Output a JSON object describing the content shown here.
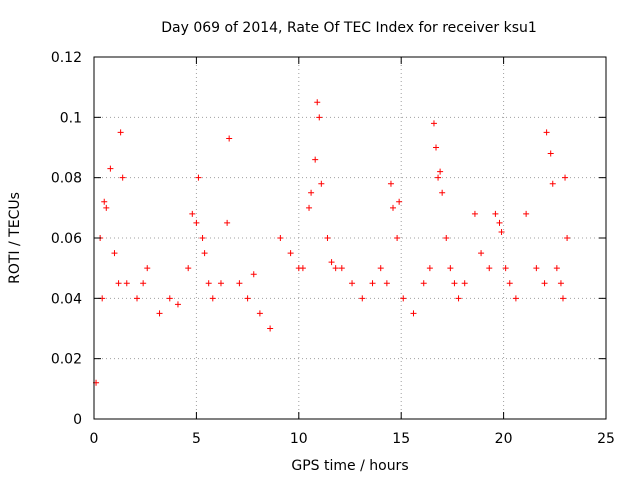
{
  "chart_data": {
    "type": "scatter",
    "title": "Day 069 of 2014, Rate Of TEC Index for receiver ksu1",
    "xlabel": "GPS time / hours",
    "ylabel": "ROTI / TECUs",
    "xlim": [
      0,
      25
    ],
    "ylim": [
      0,
      0.12
    ],
    "x_ticks": [
      0,
      5,
      10,
      15,
      20,
      25
    ],
    "x_tick_labels": [
      "0",
      "5",
      "10",
      "15",
      "20",
      "25"
    ],
    "y_ticks": [
      0,
      0.02,
      0.04,
      0.06,
      0.08,
      0.1,
      0.12
    ],
    "y_tick_labels": [
      "0",
      "0.02",
      "0.04",
      "0.06",
      "0.08",
      "0.1",
      "0.12"
    ],
    "grid": true,
    "marker": "+",
    "series": [
      {
        "name": "ROTI",
        "color": "#ff0000",
        "x": [
          0.1,
          0.3,
          0.4,
          0.5,
          0.6,
          0.8,
          1.0,
          1.2,
          1.3,
          1.4,
          1.6,
          2.1,
          2.4,
          2.6,
          3.2,
          3.7,
          4.1,
          4.6,
          4.8,
          5.0,
          5.1,
          5.3,
          5.4,
          5.6,
          5.8,
          6.2,
          6.5,
          6.6,
          7.1,
          7.5,
          7.8,
          8.1,
          8.6,
          9.1,
          9.6,
          10.0,
          10.2,
          10.5,
          10.6,
          10.8,
          10.9,
          11.0,
          11.1,
          11.4,
          11.6,
          11.8,
          12.1,
          12.6,
          13.1,
          13.6,
          14.0,
          14.3,
          14.5,
          14.6,
          14.8,
          14.9,
          15.1,
          15.6,
          16.1,
          16.4,
          16.6,
          16.7,
          16.8,
          16.9,
          17.0,
          17.2,
          17.4,
          17.6,
          17.8,
          18.1,
          18.6,
          18.9,
          19.3,
          19.6,
          19.8,
          19.9,
          20.1,
          20.3,
          20.6,
          21.1,
          21.6,
          22.0,
          22.1,
          22.3,
          22.4,
          22.6,
          22.8,
          22.9,
          23.0,
          23.1
        ],
        "y": [
          0.012,
          0.06,
          0.04,
          0.072,
          0.07,
          0.083,
          0.055,
          0.045,
          0.095,
          0.08,
          0.045,
          0.04,
          0.045,
          0.05,
          0.035,
          0.04,
          0.038,
          0.05,
          0.068,
          0.065,
          0.08,
          0.06,
          0.055,
          0.045,
          0.04,
          0.045,
          0.065,
          0.093,
          0.045,
          0.04,
          0.048,
          0.035,
          0.03,
          0.06,
          0.055,
          0.05,
          0.05,
          0.07,
          0.075,
          0.086,
          0.105,
          0.1,
          0.078,
          0.06,
          0.052,
          0.05,
          0.05,
          0.045,
          0.04,
          0.045,
          0.05,
          0.045,
          0.078,
          0.07,
          0.06,
          0.072,
          0.04,
          0.035,
          0.045,
          0.05,
          0.098,
          0.09,
          0.08,
          0.082,
          0.075,
          0.06,
          0.05,
          0.045,
          0.04,
          0.045,
          0.068,
          0.055,
          0.05,
          0.068,
          0.065,
          0.062,
          0.05,
          0.045,
          0.04,
          0.068,
          0.05,
          0.045,
          0.095,
          0.088,
          0.078,
          0.05,
          0.045,
          0.04,
          0.08,
          0.06
        ]
      }
    ]
  }
}
